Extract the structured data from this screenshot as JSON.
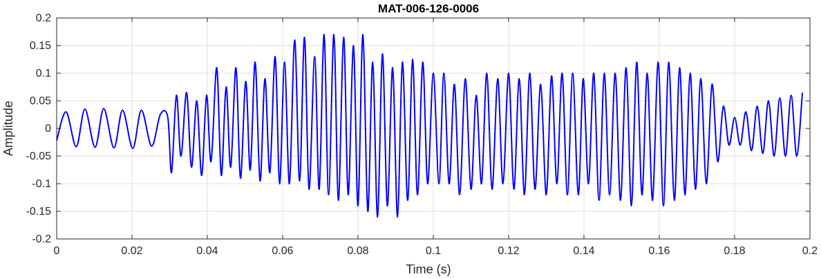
{
  "chart_data": {
    "type": "line",
    "title": "MAT-006-126-0006",
    "xlabel": "Time (s)",
    "ylabel": "Amplitude",
    "xlim": [
      0,
      0.2
    ],
    "ylim": [
      -0.2,
      0.2
    ],
    "xticks": [
      0,
      0.02,
      0.04,
      0.06,
      0.08,
      0.1,
      0.12,
      0.14,
      0.16,
      0.18,
      0.2
    ],
    "xtick_labels": [
      "0",
      "0.02",
      "0.04",
      "0.06",
      "0.08",
      "0.1",
      "0.12",
      "0.14",
      "0.16",
      "0.18",
      "0.2"
    ],
    "yticks": [
      -0.2,
      -0.15,
      -0.1,
      -0.05,
      0,
      0.05,
      0.1,
      0.15,
      0.2
    ],
    "ytick_labels": [
      "-0.2",
      "-0.15",
      "-0.1",
      "-0.05",
      "0",
      "0.05",
      "0.1",
      "0.15",
      "0.2"
    ],
    "grid": true,
    "line_color": "#0000ff",
    "series": [
      {
        "x": [
          0,
          0.0025,
          0.0052,
          0.0075,
          0.0102,
          0.0125,
          0.0152,
          0.0175,
          0.0202,
          0.0225,
          0.0252,
          0.0275,
          0.0295,
          0.0305,
          0.0318,
          0.033,
          0.0345,
          0.0358,
          0.0372,
          0.0385,
          0.0398,
          0.041,
          0.0425,
          0.0437,
          0.045,
          0.0462,
          0.0476,
          0.0488,
          0.0502,
          0.0514,
          0.0527,
          0.054,
          0.0553,
          0.0566,
          0.058,
          0.0592,
          0.0605,
          0.0618,
          0.0632,
          0.0645,
          0.0658,
          0.067,
          0.0685,
          0.0697,
          0.071,
          0.0722,
          0.0736,
          0.0748,
          0.0762,
          0.0774,
          0.0788,
          0.08,
          0.0813,
          0.0826,
          0.0839,
          0.0852,
          0.0865,
          0.0878,
          0.0892,
          0.0905,
          0.0918,
          0.0932,
          0.0945,
          0.0958,
          0.0972,
          0.0985,
          0.1,
          0.1015,
          0.1028,
          0.1042,
          0.1056,
          0.107,
          0.1085,
          0.11,
          0.1114,
          0.1128,
          0.1142,
          0.1156,
          0.1171,
          0.1185,
          0.12,
          0.1214,
          0.1228,
          0.1242,
          0.1256,
          0.127,
          0.1285,
          0.13,
          0.1314,
          0.1328,
          0.1342,
          0.1356,
          0.137,
          0.1385,
          0.1398,
          0.1412,
          0.1426,
          0.144,
          0.1454,
          0.1468,
          0.1483,
          0.1497,
          0.1512,
          0.1526,
          0.154,
          0.1554,
          0.1568,
          0.1582,
          0.1597,
          0.1611,
          0.1625,
          0.164,
          0.1654,
          0.1668,
          0.1682,
          0.1696,
          0.171,
          0.1725,
          0.174,
          0.1755,
          0.177,
          0.1785,
          0.18,
          0.1815,
          0.183,
          0.1845,
          0.186,
          0.1875,
          0.189,
          0.1905,
          0.192,
          0.1935,
          0.195,
          0.1965,
          0.198
        ],
        "y": [
          -0.022,
          0.03,
          -0.033,
          0.035,
          -0.034,
          0.036,
          -0.035,
          0.033,
          -0.036,
          0.033,
          -0.032,
          0.025,
          0.02,
          -0.08,
          0.06,
          -0.05,
          0.065,
          -0.07,
          0.05,
          -0.085,
          0.06,
          -0.06,
          0.11,
          -0.085,
          0.075,
          -0.07,
          0.11,
          -0.09,
          0.085,
          -0.075,
          0.12,
          -0.095,
          0.09,
          -0.08,
          0.13,
          -0.1,
          0.12,
          -0.1,
          0.16,
          -0.095,
          0.165,
          -0.11,
          0.13,
          -0.11,
          0.17,
          -0.12,
          0.17,
          -0.13,
          0.165,
          -0.12,
          0.15,
          -0.14,
          0.17,
          -0.15,
          0.12,
          -0.16,
          0.135,
          -0.14,
          0.11,
          -0.16,
          0.12,
          -0.13,
          0.125,
          -0.12,
          0.12,
          -0.1,
          0.1,
          -0.1,
          0.1,
          -0.1,
          0.08,
          -0.12,
          0.09,
          -0.11,
          0.06,
          -0.1,
          0.1,
          -0.11,
          0.09,
          -0.1,
          0.1,
          -0.11,
          0.09,
          -0.12,
          0.1,
          -0.11,
          0.08,
          -0.12,
          0.095,
          -0.1,
          0.1,
          -0.12,
          0.1,
          -0.12,
          0.09,
          -0.1,
          0.1,
          -0.13,
          0.1,
          -0.12,
          0.1,
          -0.13,
          0.11,
          -0.14,
          0.12,
          -0.12,
          0.1,
          -0.13,
          0.12,
          -0.14,
          0.12,
          -0.13,
          0.11,
          -0.12,
          0.1,
          -0.11,
          0.09,
          -0.1,
          0.08,
          -0.06,
          0.04,
          -0.03,
          0.02,
          -0.03,
          0.03,
          -0.04,
          0.04,
          -0.045,
          0.05,
          -0.05,
          0.055,
          -0.05,
          0.06,
          -0.05,
          0.065
        ]
      }
    ]
  }
}
